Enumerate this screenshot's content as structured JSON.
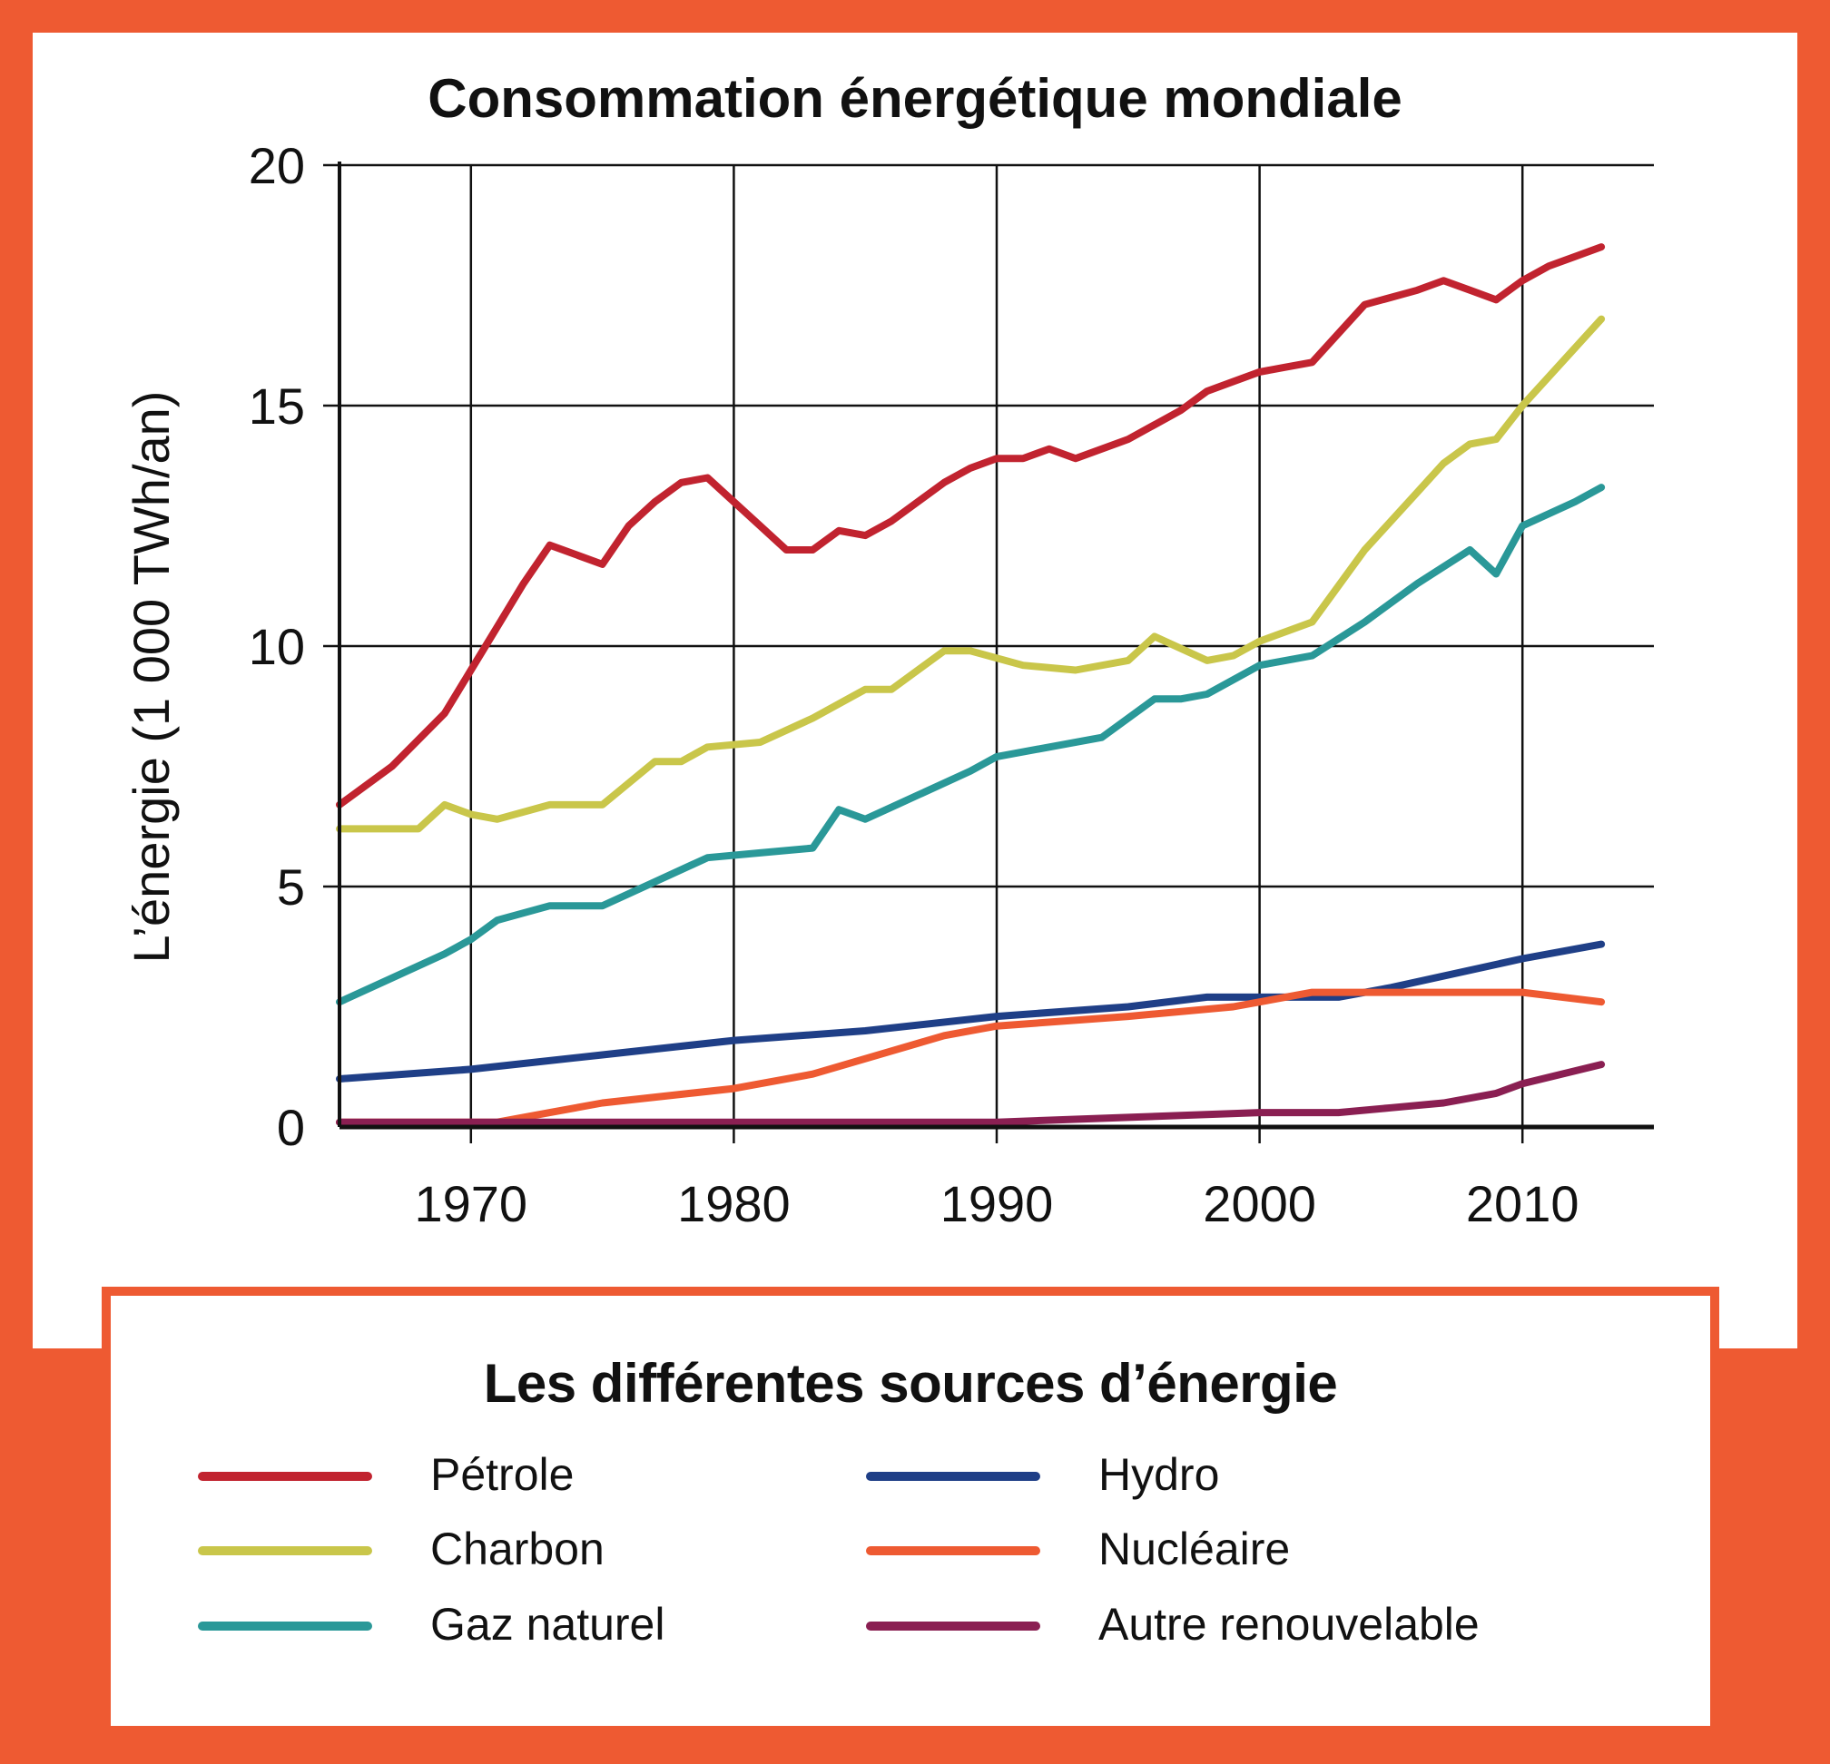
{
  "chart_data": {
    "type": "line",
    "title": "Consommation énergétique mondiale",
    "ylabel": "L’énergie (1 000 TWh/an)",
    "xlabel": "",
    "xlim": [
      1965,
      2015
    ],
    "ylim": [
      0,
      20
    ],
    "xticks": [
      1970,
      1980,
      1990,
      2000,
      2010
    ],
    "yticks": [
      0,
      5,
      10,
      15,
      20
    ],
    "grid": true,
    "legend_title": "Les différentes sources d’énergie",
    "legend_position": "bottom",
    "series": [
      {
        "name": "Pétrole",
        "color": "#c1232f",
        "points": [
          [
            1965,
            6.7
          ],
          [
            1967,
            7.5
          ],
          [
            1969,
            8.6
          ],
          [
            1970,
            9.5
          ],
          [
            1971,
            10.4
          ],
          [
            1972,
            11.3
          ],
          [
            1973,
            12.1
          ],
          [
            1975,
            11.7
          ],
          [
            1976,
            12.5
          ],
          [
            1977,
            13.0
          ],
          [
            1978,
            13.4
          ],
          [
            1979,
            13.5
          ],
          [
            1980,
            13.0
          ],
          [
            1981,
            12.5
          ],
          [
            1982,
            12.0
          ],
          [
            1983,
            12.0
          ],
          [
            1984,
            12.4
          ],
          [
            1985,
            12.3
          ],
          [
            1986,
            12.6
          ],
          [
            1988,
            13.4
          ],
          [
            1989,
            13.7
          ],
          [
            1990,
            13.9
          ],
          [
            1991,
            13.9
          ],
          [
            1992,
            14.1
          ],
          [
            1993,
            13.9
          ],
          [
            1995,
            14.3
          ],
          [
            1997,
            14.9
          ],
          [
            1998,
            15.3
          ],
          [
            1999,
            15.5
          ],
          [
            2000,
            15.7
          ],
          [
            2001,
            15.8
          ],
          [
            2002,
            15.9
          ],
          [
            2004,
            17.1
          ],
          [
            2006,
            17.4
          ],
          [
            2007,
            17.6
          ],
          [
            2008,
            17.4
          ],
          [
            2009,
            17.2
          ],
          [
            2010,
            17.6
          ],
          [
            2011,
            17.9
          ],
          [
            2012,
            18.1
          ],
          [
            2013,
            18.3
          ]
        ]
      },
      {
        "name": "Charbon",
        "color": "#c9c64a",
        "points": [
          [
            1965,
            6.2
          ],
          [
            1967,
            6.2
          ],
          [
            1968,
            6.2
          ],
          [
            1969,
            6.7
          ],
          [
            1970,
            6.5
          ],
          [
            1971,
            6.4
          ],
          [
            1973,
            6.7
          ],
          [
            1975,
            6.7
          ],
          [
            1977,
            7.6
          ],
          [
            1978,
            7.6
          ],
          [
            1979,
            7.9
          ],
          [
            1981,
            8.0
          ],
          [
            1983,
            8.5
          ],
          [
            1985,
            9.1
          ],
          [
            1986,
            9.1
          ],
          [
            1988,
            9.9
          ],
          [
            1989,
            9.9
          ],
          [
            1991,
            9.6
          ],
          [
            1993,
            9.5
          ],
          [
            1995,
            9.7
          ],
          [
            1996,
            10.2
          ],
          [
            1998,
            9.7
          ],
          [
            1999,
            9.8
          ],
          [
            2000,
            10.1
          ],
          [
            2002,
            10.5
          ],
          [
            2004,
            12.0
          ],
          [
            2006,
            13.2
          ],
          [
            2007,
            13.8
          ],
          [
            2008,
            14.2
          ],
          [
            2009,
            14.3
          ],
          [
            2010,
            15.0
          ],
          [
            2011,
            15.6
          ],
          [
            2012,
            16.2
          ],
          [
            2013,
            16.8
          ]
        ]
      },
      {
        "name": "Gaz naturel",
        "color": "#2a9898",
        "points": [
          [
            1965,
            2.6
          ],
          [
            1967,
            3.1
          ],
          [
            1969,
            3.6
          ],
          [
            1970,
            3.9
          ],
          [
            1971,
            4.3
          ],
          [
            1973,
            4.6
          ],
          [
            1975,
            4.6
          ],
          [
            1977,
            5.1
          ],
          [
            1979,
            5.6
          ],
          [
            1981,
            5.7
          ],
          [
            1983,
            5.8
          ],
          [
            1984,
            6.6
          ],
          [
            1985,
            6.4
          ],
          [
            1987,
            6.9
          ],
          [
            1989,
            7.4
          ],
          [
            1990,
            7.7
          ],
          [
            1992,
            7.9
          ],
          [
            1994,
            8.1
          ],
          [
            1996,
            8.9
          ],
          [
            1997,
            8.9
          ],
          [
            1998,
            9.0
          ],
          [
            2000,
            9.6
          ],
          [
            2002,
            9.8
          ],
          [
            2004,
            10.5
          ],
          [
            2006,
            11.3
          ],
          [
            2008,
            12.0
          ],
          [
            2009,
            11.5
          ],
          [
            2010,
            12.5
          ],
          [
            2012,
            13.0
          ],
          [
            2013,
            13.3
          ]
        ]
      },
      {
        "name": "Hydro",
        "color": "#1f3f87",
        "points": [
          [
            1965,
            1.0
          ],
          [
            1970,
            1.2
          ],
          [
            1975,
            1.5
          ],
          [
            1980,
            1.8
          ],
          [
            1985,
            2.0
          ],
          [
            1990,
            2.3
          ],
          [
            1995,
            2.5
          ],
          [
            1998,
            2.7
          ],
          [
            2000,
            2.7
          ],
          [
            2003,
            2.7
          ],
          [
            2005,
            2.9
          ],
          [
            2010,
            3.5
          ],
          [
            2013,
            3.8
          ]
        ]
      },
      {
        "name": "Nucléaire",
        "color": "#ee5a32",
        "points": [
          [
            1965,
            0.1
          ],
          [
            1970,
            0.1
          ],
          [
            1971,
            0.1
          ],
          [
            1973,
            0.3
          ],
          [
            1975,
            0.5
          ],
          [
            1980,
            0.8
          ],
          [
            1983,
            1.1
          ],
          [
            1988,
            1.9
          ],
          [
            1990,
            2.1
          ],
          [
            1995,
            2.3
          ],
          [
            1999,
            2.5
          ],
          [
            2002,
            2.8
          ],
          [
            2005,
            2.8
          ],
          [
            2010,
            2.8
          ],
          [
            2013,
            2.6
          ]
        ]
      },
      {
        "name": "Autre renouvelable",
        "color": "#8a1f52",
        "points": [
          [
            1965,
            0.1
          ],
          [
            1990,
            0.1
          ],
          [
            1995,
            0.2
          ],
          [
            2000,
            0.3
          ],
          [
            2003,
            0.3
          ],
          [
            2005,
            0.4
          ],
          [
            2007,
            0.5
          ],
          [
            2009,
            0.7
          ],
          [
            2010,
            0.9
          ],
          [
            2013,
            1.3
          ]
        ]
      }
    ]
  }
}
